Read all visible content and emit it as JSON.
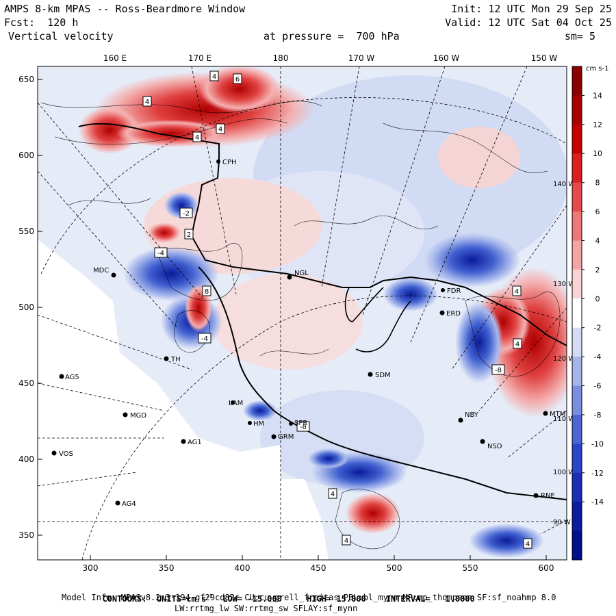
{
  "header": {
    "model": "AMPS 8-km MPAS -- Ross-Beardmore Window",
    "init": "Init: 12 UTC Mon 29 Sep 25",
    "fcst": "Fcst:  120 h",
    "valid": "Valid: 12 UTC Sat 04 Oct 25",
    "field": "Vertical velocity",
    "pressure": "at pressure =  700 hPa",
    "smooth": "sm= 5"
  },
  "map": {
    "top_lon_labels": [
      "160 E",
      "170 E",
      "180",
      "170 W",
      "160 W",
      "150 W"
    ],
    "right_lon_labels": [
      "140 W",
      "130 W",
      "120 W",
      "110 W",
      "100 W",
      "90 W"
    ],
    "y_ticks": [
      "650",
      "600",
      "550",
      "500",
      "450",
      "400",
      "350"
    ],
    "x_ticks": [
      "300",
      "350",
      "400",
      "450",
      "500",
      "550",
      "600"
    ],
    "stations": [
      "CPH",
      "MDC",
      "NGL",
      "FDR",
      "ERD",
      "SDM",
      "AG5",
      "MGD",
      "AG1",
      "VOS",
      "AG4",
      "NBY",
      "NSD",
      "RNE",
      "MTM",
      "GRM",
      "SPR",
      "LAM",
      "HM",
      "TH"
    ],
    "box_labels": [
      "4",
      "6",
      "4",
      "4",
      "4",
      "-2",
      "-4",
      "8",
      "-4",
      "4",
      "-8",
      "4",
      "-8",
      "4",
      "4",
      "2",
      "4"
    ]
  },
  "colorbar": {
    "units": "cm s-1",
    "labels": [
      "14",
      "12",
      "10",
      "8",
      "6",
      "4",
      "2",
      "0",
      "-2",
      "-4",
      "-6",
      "-8",
      "-10",
      "-12",
      "-14"
    ],
    "colors": [
      "#8b0000",
      "#a80000",
      "#c40000",
      "#dc2020",
      "#e64a4a",
      "#ee7878",
      "#f4a4a4",
      "#fad2d2",
      "#ffffff",
      "#d4dcf4",
      "#a6b4ec",
      "#7a8ee0",
      "#4e66d4",
      "#2846c8",
      "#1a2eb8",
      "#0c1ca0",
      "#00108a"
    ]
  },
  "footer": {
    "contours_label": "CONTOURS:",
    "units_label": "UNITS=cm s",
    "units_exp": "-1",
    "low": "LOW= -15.000",
    "high": "HIGH= 15.000",
    "interval": "INTERVAL=   1.0000",
    "model_info": "Model Info: MPASv8.2.3-194-gf29cd82c CU:cu_grell_freitas PBL:bl_mynn MP:mp_thompson SF:sf_noahmp 8.0",
    "model_info2": "LW:rrtmg_lw SW:rrtmg_sw SFLAY:sf_mynn"
  }
}
